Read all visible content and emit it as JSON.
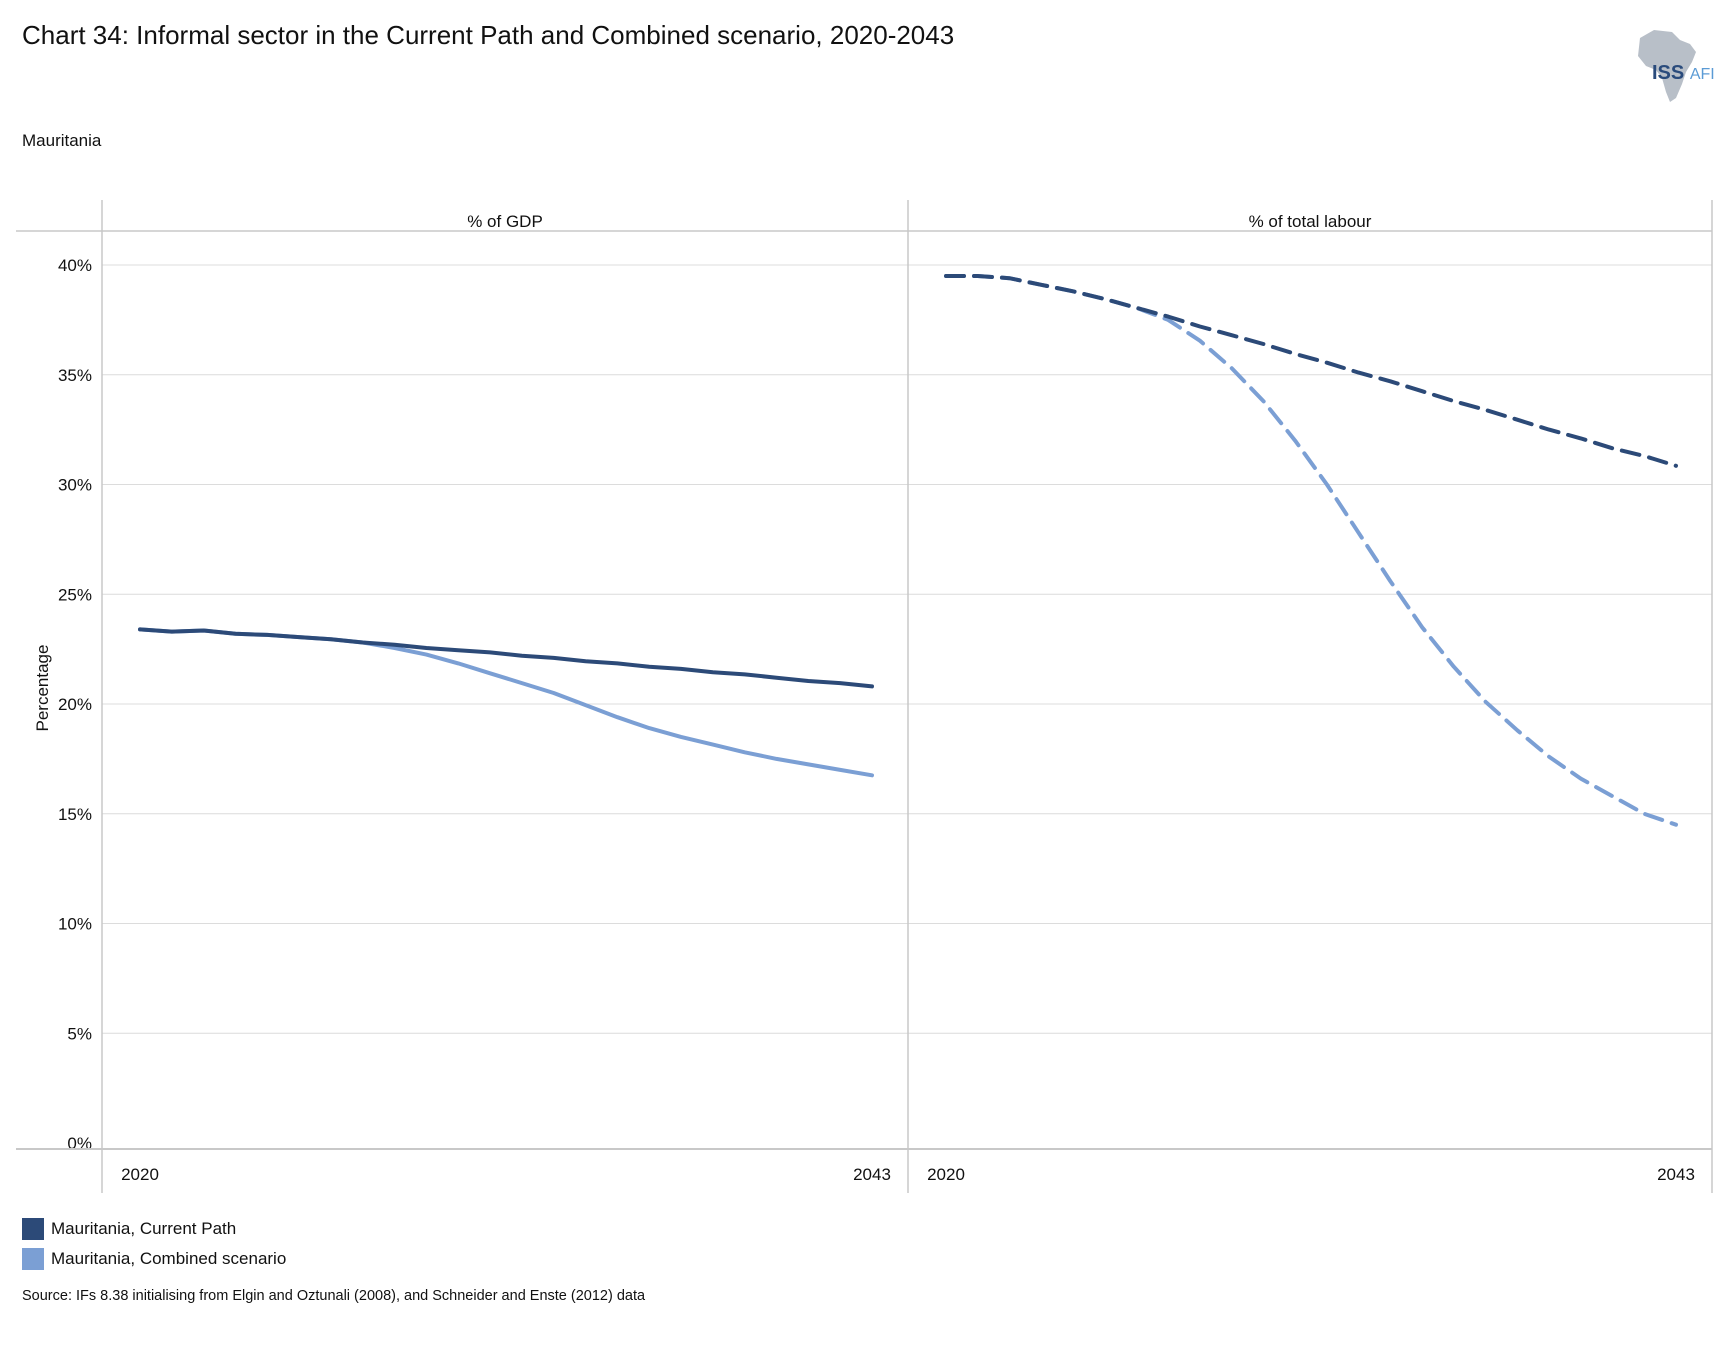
{
  "header": {
    "title": "Chart 34: Informal sector in the Current Path and Combined scenario, 2020-2043",
    "subtitle": "Mauritania"
  },
  "logo": {
    "main": "ISS",
    "suffix": "AFI"
  },
  "footer": {
    "source": "Source: IFs 8.38 initialising from Elgin and Oztunali (2008), and Schneider and Enste (2012) data"
  },
  "colors": {
    "current_path": "#2c4a78",
    "combined": "#7b9fd4",
    "grid": "#dcdcdc",
    "axis": "#c8c8c8"
  },
  "chart_data": {
    "type": "line",
    "ylabel": "Percentage",
    "ylim": [
      0,
      40
    ],
    "yticks": [
      "0%",
      "5%",
      "10%",
      "15%",
      "20%",
      "25%",
      "30%",
      "35%",
      "40%"
    ],
    "xticks": [
      "2020",
      "2043"
    ],
    "legend": [
      {
        "name": "Mauritania, Current Path",
        "color": "#2c4a78"
      },
      {
        "name": "Mauritania, Combined scenario",
        "color": "#7b9fd4"
      }
    ],
    "panels": [
      {
        "label": "% of GDP",
        "line_style": "solid",
        "x": [
          2020,
          2021,
          2022,
          2023,
          2024,
          2025,
          2026,
          2027,
          2028,
          2029,
          2030,
          2031,
          2032,
          2033,
          2034,
          2035,
          2036,
          2037,
          2038,
          2039,
          2040,
          2041,
          2042,
          2043
        ],
        "series": [
          {
            "name": "Mauritania, Current Path",
            "values": [
              23.4,
              23.3,
              23.35,
              23.2,
              23.15,
              23.05,
              22.95,
              22.8,
              22.7,
              22.55,
              22.45,
              22.35,
              22.2,
              22.1,
              21.95,
              21.85,
              21.7,
              21.6,
              21.45,
              21.35,
              21.2,
              21.05,
              20.95,
              20.8
            ]
          },
          {
            "name": "Mauritania, Combined scenario",
            "values": [
              23.4,
              23.3,
              23.35,
              23.2,
              23.15,
              23.05,
              22.95,
              22.8,
              22.55,
              22.25,
              21.85,
              21.4,
              20.95,
              20.5,
              19.95,
              19.4,
              18.9,
              18.5,
              18.15,
              17.8,
              17.5,
              17.25,
              17.0,
              16.75
            ]
          }
        ]
      },
      {
        "label": "% of total labour",
        "line_style": "dashed",
        "x": [
          2020,
          2021,
          2022,
          2023,
          2024,
          2025,
          2026,
          2027,
          2028,
          2029,
          2030,
          2031,
          2032,
          2033,
          2034,
          2035,
          2036,
          2037,
          2038,
          2039,
          2040,
          2041,
          2042,
          2043
        ],
        "series": [
          {
            "name": "Mauritania, Current Path",
            "values": [
              39.5,
              39.5,
              39.4,
              39.1,
              38.8,
              38.45,
              38.05,
              37.65,
              37.2,
              36.8,
              36.4,
              35.95,
              35.55,
              35.1,
              34.7,
              34.25,
              33.8,
              33.4,
              32.95,
              32.5,
              32.1,
              31.65,
              31.3,
              30.85
            ]
          },
          {
            "name": "Mauritania, Combined scenario",
            "values": [
              39.5,
              39.5,
              39.4,
              39.1,
              38.8,
              38.45,
              38.05,
              37.5,
              36.55,
              35.3,
              33.8,
              32.0,
              30.0,
              27.8,
              25.6,
              23.5,
              21.7,
              20.1,
              18.8,
              17.6,
              16.6,
              15.8,
              15.0,
              14.5
            ]
          }
        ]
      }
    ]
  }
}
